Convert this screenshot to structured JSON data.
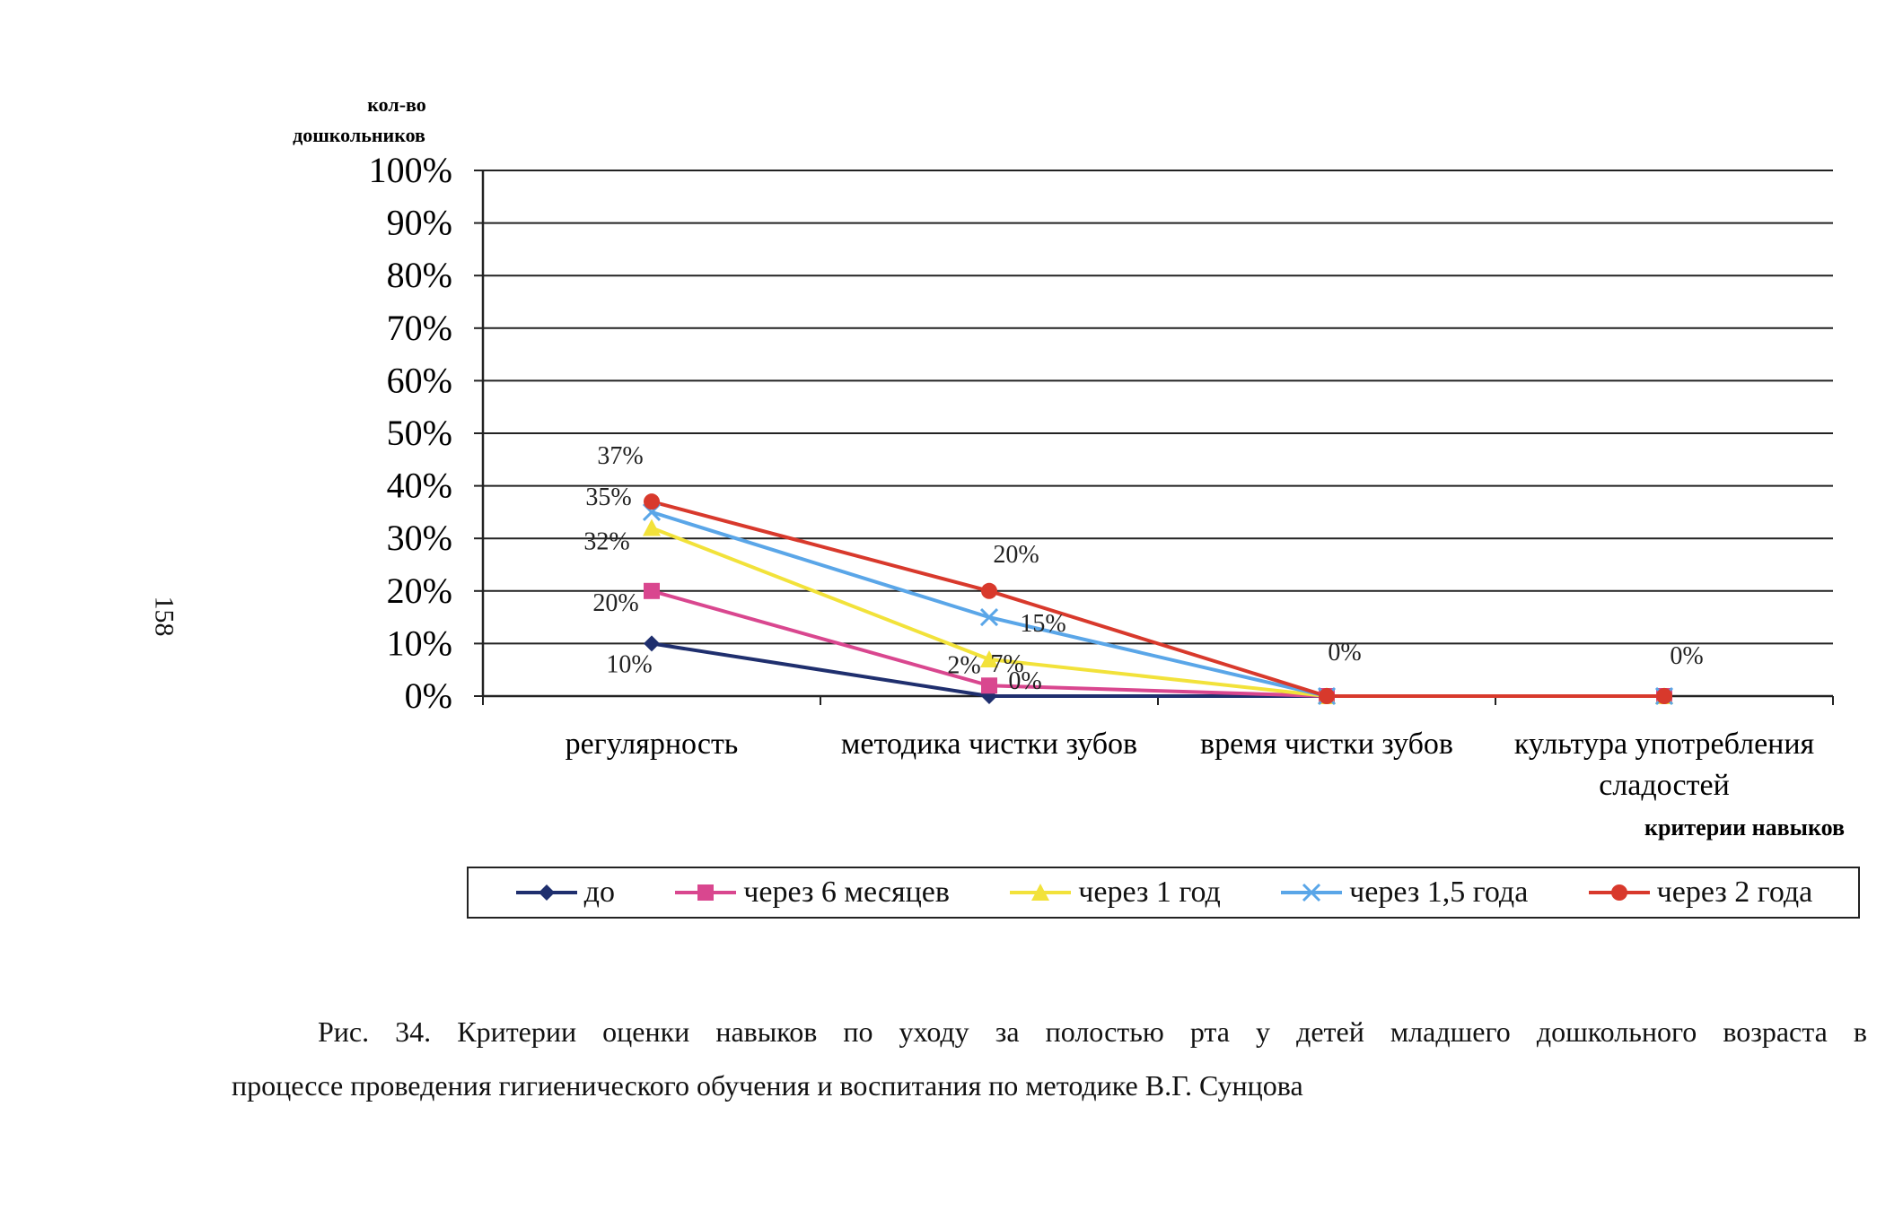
{
  "page_number": "158",
  "caption": {
    "line1": "Рис. 34. Критерии оценки навыков по уходу за полостью рта у детей младшего дошкольного возраста в",
    "line2": "процессе проведения гигиенического обучения и воспитания по методике В.Г. Сунцова"
  },
  "chart_data": {
    "type": "line",
    "ylabel": "кол-во дошкольников",
    "ylabel_lines": [
      "кол-во",
      "дошкольников"
    ],
    "xlabel": "критерии навыков",
    "ylim": [
      0,
      100
    ],
    "y_ticks": [
      "0%",
      "10%",
      "20%",
      "30%",
      "40%",
      "50%",
      "60%",
      "70%",
      "80%",
      "90%",
      "100%"
    ],
    "grid": true,
    "legend_position": "bottom",
    "categories": [
      "регулярность",
      "методика чистки зубов",
      "время чистки зубов",
      "культура употребления сладостей"
    ],
    "category_lines": [
      [
        "регулярность"
      ],
      [
        "методика чистки зубов"
      ],
      [
        "время чистки зубов"
      ],
      [
        "культура употребления",
        "сладостей"
      ]
    ],
    "series": [
      {
        "name": "до",
        "values": [
          10,
          0,
          0,
          0
        ],
        "color": "#1f2f6e",
        "marker": "diamond"
      },
      {
        "name": "через 6 месяцев",
        "values": [
          20,
          2,
          0,
          0
        ],
        "color": "#d9478f",
        "marker": "square"
      },
      {
        "name": "через 1 год",
        "values": [
          32,
          7,
          0,
          0
        ],
        "color": "#f2e23a",
        "marker": "triangle"
      },
      {
        "name": "через 1,5 года",
        "values": [
          35,
          15,
          0,
          0
        ],
        "color": "#5aa6e8",
        "marker": "x"
      },
      {
        "name": "через 2 года",
        "values": [
          37,
          20,
          0,
          0
        ],
        "color": "#d8392c",
        "marker": "circle"
      }
    ],
    "data_labels": [
      {
        "text": "37%",
        "category": 0,
        "value": 37
      },
      {
        "text": "35%",
        "category": 0,
        "value": 35
      },
      {
        "text": "32%",
        "category": 0,
        "value": 32
      },
      {
        "text": "20%",
        "category": 0,
        "value": 20
      },
      {
        "text": "10%",
        "category": 0,
        "value": 10
      },
      {
        "text": "20%",
        "category": 1,
        "value": 20
      },
      {
        "text": "15%",
        "category": 1,
        "value": 15
      },
      {
        "text": "7%",
        "category": 1,
        "value": 7
      },
      {
        "text": "2%",
        "category": 1,
        "value": 2
      },
      {
        "text": "0%",
        "category": 1,
        "value": 0
      },
      {
        "text": "0%",
        "category": 2,
        "value": 0
      },
      {
        "text": "0%",
        "category": 3,
        "value": 0
      }
    ]
  }
}
